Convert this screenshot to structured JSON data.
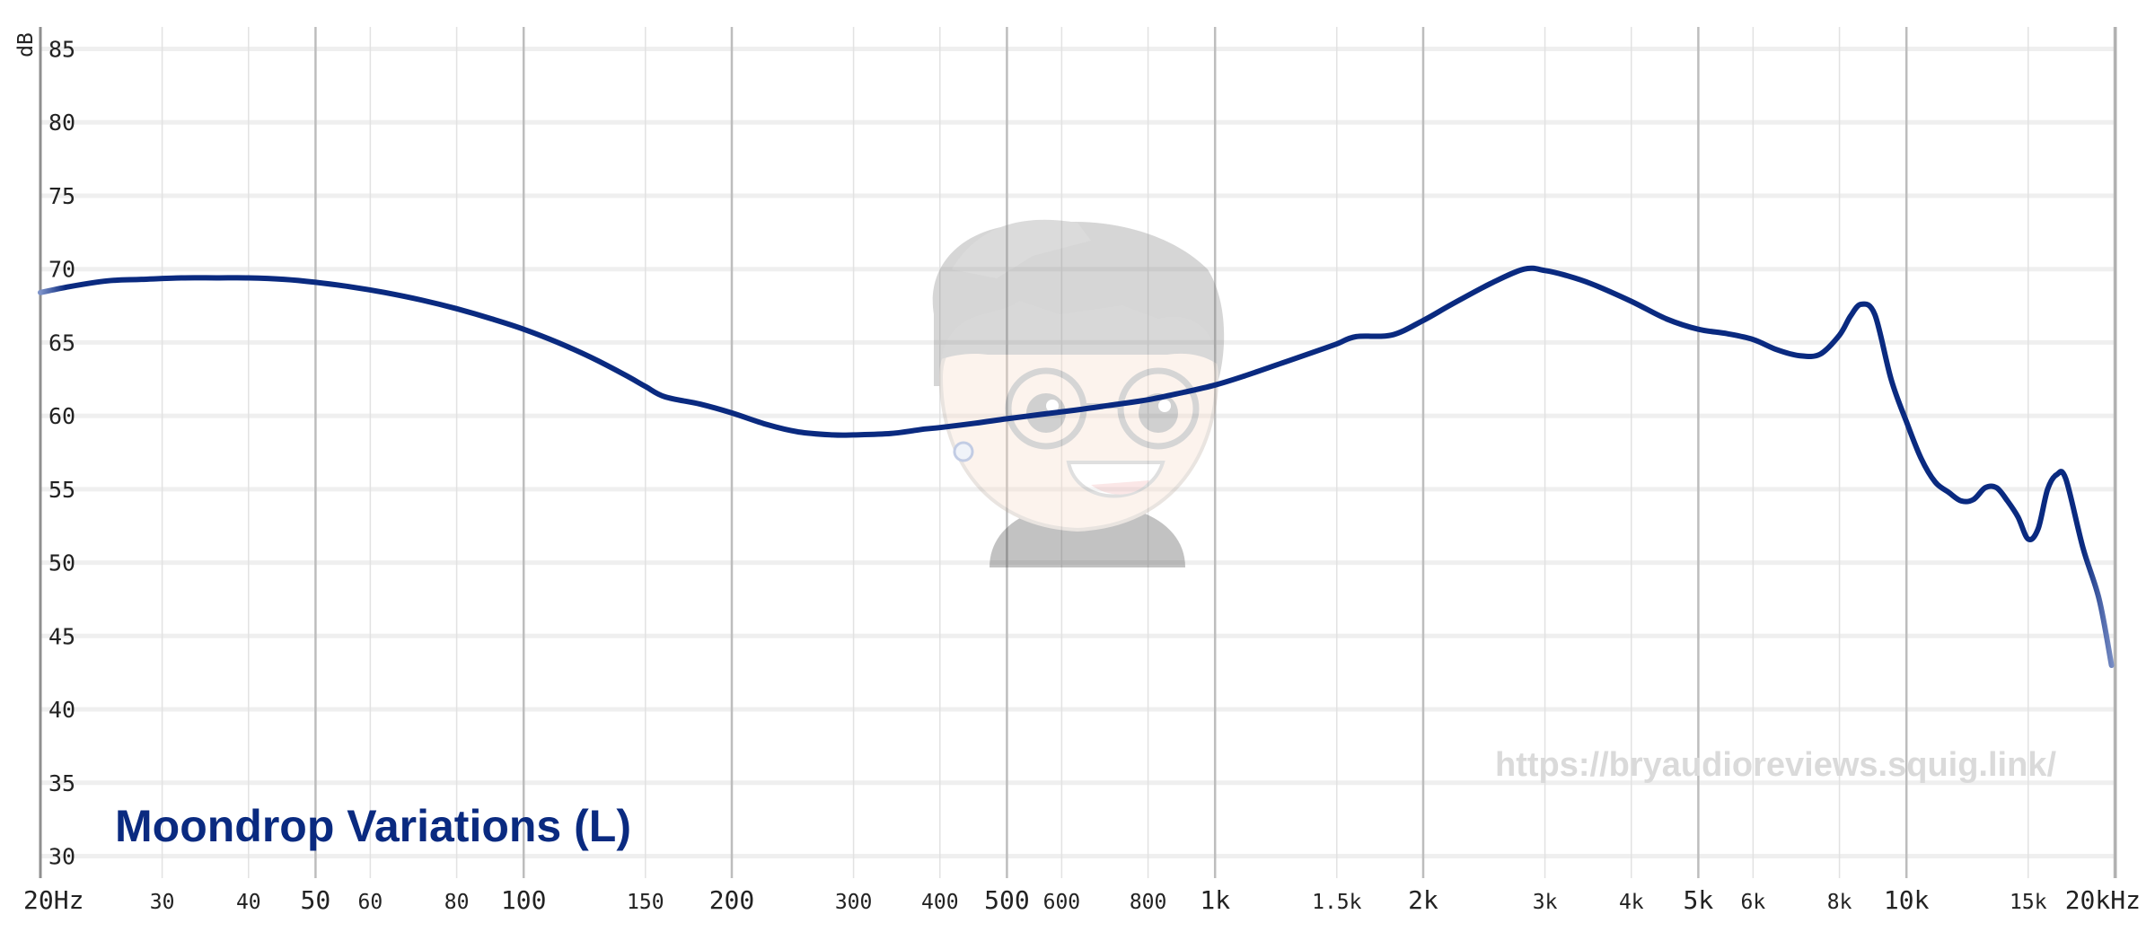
{
  "colors": {
    "curve": "#0a2a80",
    "title": "#0a2a80",
    "watermark": "#dadada",
    "grid_minor": "#e2e2e2",
    "grid_major": "#bdbdbd",
    "hgrid": "#efefef"
  },
  "watermark": {
    "url": "https://bryaudioreviews.squig.link/",
    "mascot_icon": "cartoon-mascot-with-glasses-icon"
  },
  "chart_data": {
    "type": "line",
    "title": "Moondrop Variations (L)",
    "ylabel": "dB",
    "xlabel": "",
    "x_scale": "log",
    "xlim": [
      20,
      20000
    ],
    "ylim": [
      28.5,
      86.5
    ],
    "y_ticks": [
      30,
      35,
      40,
      45,
      50,
      55,
      60,
      65,
      70,
      75,
      80,
      85
    ],
    "x_ticks": [
      {
        "value": 20,
        "label": "20Hz",
        "major": true
      },
      {
        "value": 30,
        "label": "30",
        "major": false
      },
      {
        "value": 40,
        "label": "40",
        "major": false
      },
      {
        "value": 50,
        "label": "50",
        "major": true
      },
      {
        "value": 60,
        "label": "60",
        "major": false
      },
      {
        "value": 80,
        "label": "80",
        "major": false
      },
      {
        "value": 100,
        "label": "100",
        "major": true
      },
      {
        "value": 150,
        "label": "150",
        "major": false
      },
      {
        "value": 200,
        "label": "200",
        "major": true
      },
      {
        "value": 300,
        "label": "300",
        "major": false
      },
      {
        "value": 400,
        "label": "400",
        "major": false
      },
      {
        "value": 500,
        "label": "500",
        "major": true
      },
      {
        "value": 600,
        "label": "600",
        "major": false
      },
      {
        "value": 800,
        "label": "800",
        "major": false
      },
      {
        "value": 1000,
        "label": "1k",
        "major": true
      },
      {
        "value": 1500,
        "label": "1.5k",
        "major": false
      },
      {
        "value": 2000,
        "label": "2k",
        "major": true
      },
      {
        "value": 3000,
        "label": "3k",
        "major": false
      },
      {
        "value": 4000,
        "label": "4k",
        "major": false
      },
      {
        "value": 5000,
        "label": "5k",
        "major": true
      },
      {
        "value": 6000,
        "label": "6k",
        "major": false
      },
      {
        "value": 8000,
        "label": "8k",
        "major": false
      },
      {
        "value": 10000,
        "label": "10k",
        "major": true
      },
      {
        "value": 15000,
        "label": "15k",
        "major": false
      },
      {
        "value": 20000,
        "label": "20kHz",
        "major": true
      }
    ],
    "grid": true,
    "series": [
      {
        "name": "Moondrop Variations (L)",
        "x": [
          20,
          22,
          25,
          28,
          32,
          36,
          40,
          45,
          50,
          56,
          63,
          71,
          80,
          90,
          100,
          112,
          125,
          140,
          150,
          160,
          180,
          200,
          225,
          250,
          280,
          300,
          340,
          380,
          400,
          450,
          500,
          560,
          630,
          700,
          800,
          900,
          1000,
          1100,
          1250,
          1400,
          1500,
          1600,
          1800,
          2000,
          2200,
          2500,
          2800,
          3000,
          3200,
          3500,
          4000,
          4500,
          5000,
          5500,
          6000,
          6500,
          7000,
          7500,
          8000,
          8300,
          8600,
          9000,
          9500,
          10000,
          10500,
          11000,
          11500,
          12000,
          12500,
          13000,
          13500,
          14000,
          14500,
          15000,
          15500,
          16000,
          16500,
          17000,
          18000,
          19000,
          19800
        ],
        "y": [
          68.4,
          68.8,
          69.2,
          69.3,
          69.4,
          69.4,
          69.4,
          69.3,
          69.1,
          68.8,
          68.4,
          67.9,
          67.3,
          66.6,
          65.9,
          65.0,
          64.0,
          62.8,
          62.0,
          61.3,
          60.8,
          60.2,
          59.4,
          58.9,
          58.7,
          58.7,
          58.8,
          59.1,
          59.2,
          59.5,
          59.8,
          60.1,
          60.4,
          60.7,
          61.1,
          61.6,
          62.1,
          62.7,
          63.6,
          64.4,
          64.9,
          65.4,
          65.5,
          66.5,
          67.6,
          69.0,
          70.0,
          69.9,
          69.6,
          69.0,
          67.8,
          66.6,
          65.9,
          65.6,
          65.2,
          64.5,
          64.1,
          64.2,
          65.5,
          66.8,
          67.6,
          66.9,
          62.5,
          59.6,
          57.1,
          55.5,
          54.8,
          54.2,
          54.3,
          55.1,
          55.1,
          54.2,
          53.1,
          51.6,
          52.3,
          55.0,
          56.0,
          55.7,
          51.0,
          47.5,
          43.0
        ]
      }
    ]
  }
}
